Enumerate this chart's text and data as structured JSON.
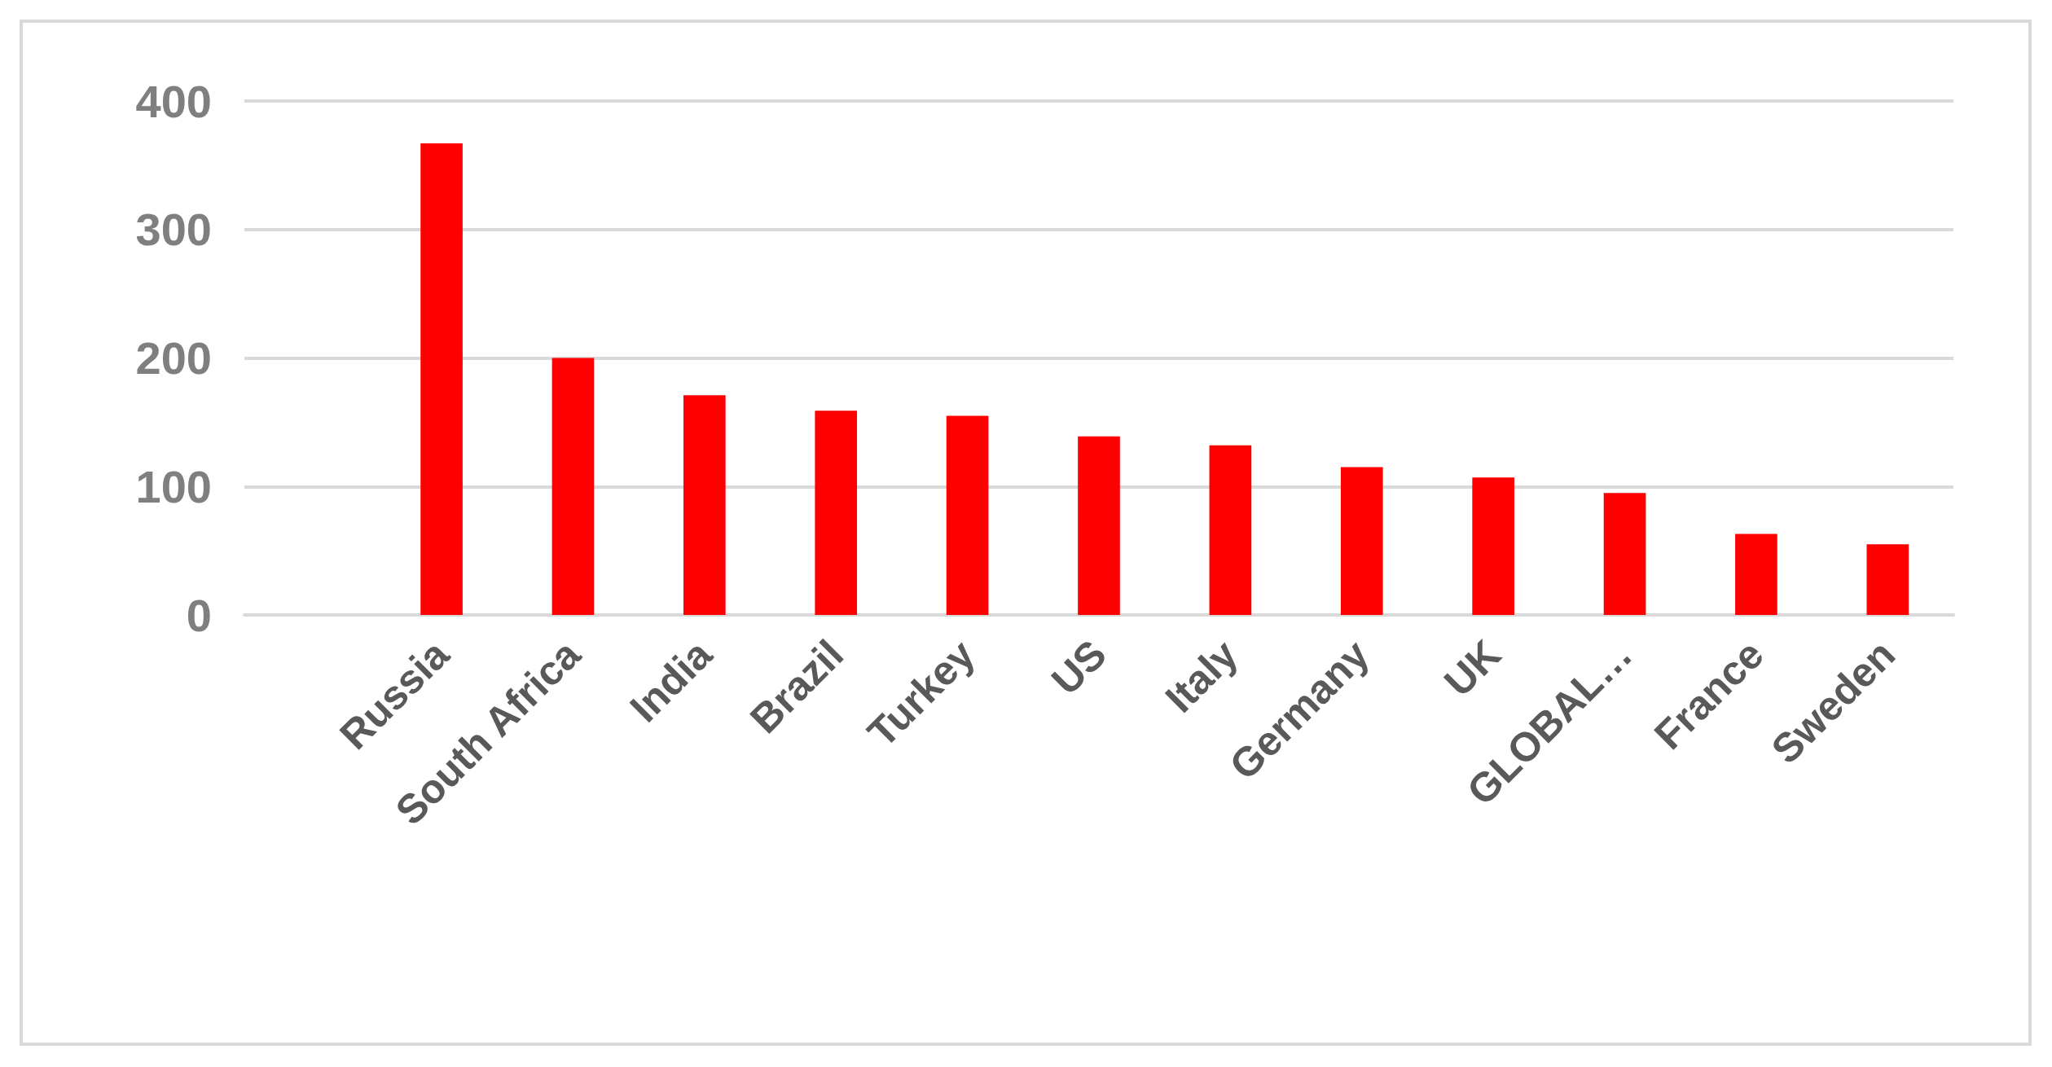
{
  "chart_data": {
    "type": "bar",
    "categories": [
      null,
      "Russia",
      "South Africa",
      "India",
      "Brazil",
      "Turkey",
      "US",
      "Italy",
      "Germany",
      "UK",
      "GLOBAL…",
      "France",
      "Sweden"
    ],
    "values": [
      null,
      367,
      200,
      171,
      159,
      155,
      139,
      132,
      115,
      107,
      95,
      63,
      55
    ],
    "color": "#ff0000",
    "ylim": [
      0,
      400
    ],
    "yticks": [
      0,
      100,
      200,
      300,
      400
    ],
    "grid": "y"
  }
}
